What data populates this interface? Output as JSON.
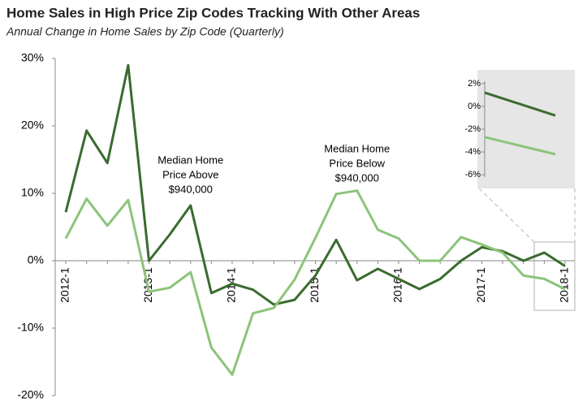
{
  "chart_data": {
    "type": "line",
    "title": "Home Sales in High Price Zip Codes Tracking With Other Areas",
    "subtitle": "Annual Change in Home Sales by Zip Code (Quarterly)",
    "categories": [
      "2012-1",
      null,
      null,
      null,
      "2013-1",
      null,
      null,
      null,
      "2014-1",
      null,
      null,
      null,
      "2015-1",
      null,
      null,
      null,
      "2016-1",
      null,
      null,
      null,
      "2017-1",
      null,
      null,
      null,
      "2018-1"
    ],
    "series": [
      {
        "color": "#3a6b2e",
        "values": [
          7.2,
          19.3,
          14.5,
          29,
          0,
          3.9,
          8.2,
          -4.8,
          -3.4,
          -4.3,
          -6.5,
          -5.8,
          -2.2,
          3.1,
          -2.9,
          -1.2,
          -2.7,
          -4.2,
          -2.7,
          0,
          2.0,
          1.4,
          0,
          1.2,
          -0.8
        ]
      },
      {
        "color": "#8cc47a",
        "values": [
          3.3,
          9.2,
          5.2,
          9.0,
          -4.6,
          -4.0,
          -1.7,
          -12.9,
          -16.9,
          -7.8,
          -7.0,
          -2.8,
          3.4,
          9.9,
          10.4,
          4.6,
          3.3,
          0,
          0,
          3.5,
          2.4,
          1.2,
          -2.2,
          -2.7,
          -4.2
        ]
      }
    ],
    "ylim": [
      -20,
      30
    ],
    "yticks": [
      {
        "value": -20,
        "label": "-20%"
      },
      {
        "value": -10,
        "label": "-10%"
      },
      {
        "value": 0,
        "label": "0%"
      },
      {
        "value": 10,
        "label": "10%"
      },
      {
        "value": 20,
        "label": "20%"
      },
      {
        "value": 30,
        "label": "30%"
      }
    ],
    "annotations": [
      {
        "lines": [
          "Median Home",
          "Price Above",
          "$940,000"
        ],
        "at": 6
      },
      {
        "lines": [
          "Median Home",
          "Price Below",
          "$940,000"
        ],
        "at": 14
      }
    ],
    "inset": {
      "ylim": [
        -7.2,
        3.2
      ],
      "yticks": [
        {
          "value": -6,
          "label": "-6%"
        },
        {
          "value": -4,
          "label": "-4%"
        },
        {
          "value": -2,
          "label": "-2%"
        },
        {
          "value": 0,
          "label": "0%"
        },
        {
          "value": 2,
          "label": "2%"
        }
      ],
      "from": 23
    }
  }
}
